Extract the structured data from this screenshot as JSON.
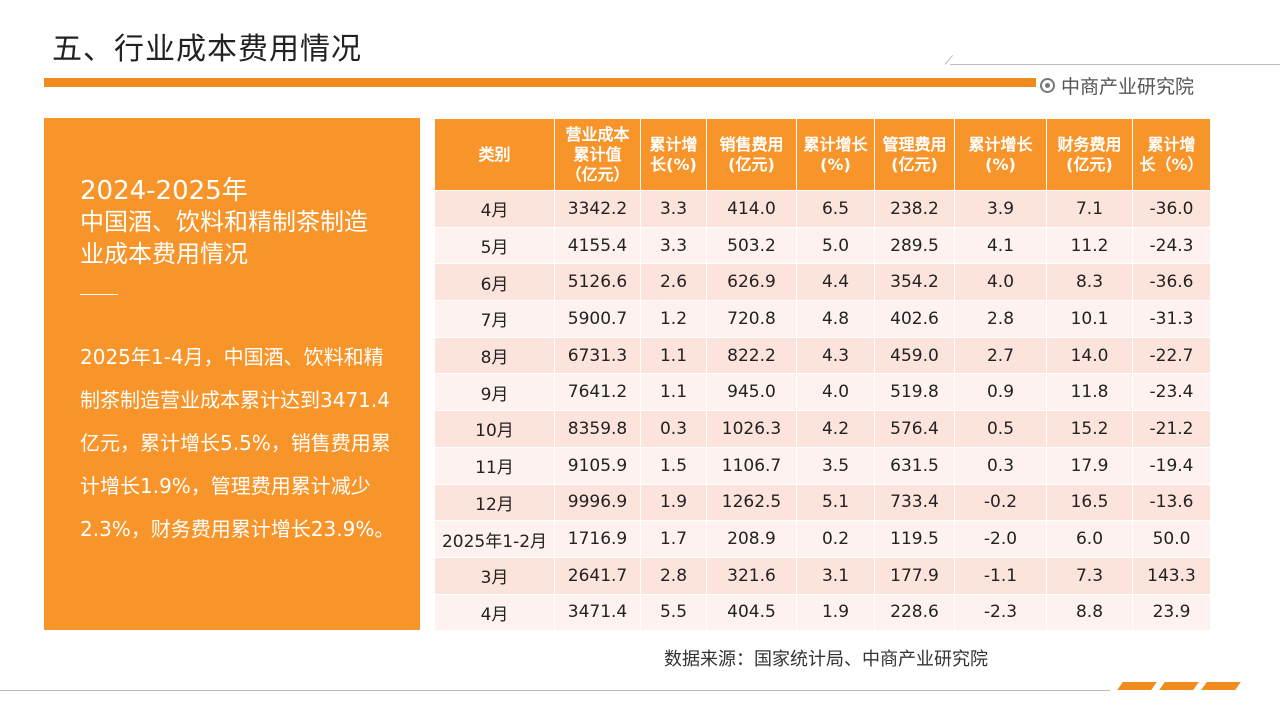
{
  "page": {
    "title": "五、行业成本费用情况",
    "brand": "中商产业研究院",
    "source": "数据来源：国家统计局、中商产业研究院"
  },
  "left_panel": {
    "year": "2024-2025年",
    "subtitle": "中国酒、饮料和精制茶制造业成本费用情况",
    "description": "2025年1-4月，中国酒、饮料和精制茶制造营业成本累计达到3471.4亿元，累计增长5.5%，销售费用累计增长1.9%，管理费用累计减少2.3%，财务费用累计增长23.9%。"
  },
  "colors": {
    "accent": "#f8952a",
    "row_odd": "#fce3dc",
    "row_even": "#fdf2ef"
  },
  "chart_data": {
    "type": "table",
    "columns": [
      "类别",
      "营业成本累计值（亿元）",
      "累计增长(%)",
      "销售费用(亿元)",
      "累计增长(%)",
      "管理费用(亿元)",
      "累计增长(%)",
      "财务费用(亿元)",
      "累计增长（%）"
    ],
    "header_lines": [
      [
        "类别"
      ],
      [
        "营业成本",
        "累计值",
        "（亿元）"
      ],
      [
        "累计增",
        "长(%)"
      ],
      [
        "销售费用",
        "(亿元)"
      ],
      [
        "累计增长",
        "(%)"
      ],
      [
        "管理费用",
        "(亿元)"
      ],
      [
        "累计增长",
        "(%)"
      ],
      [
        "财务费用",
        "(亿元)"
      ],
      [
        "累计增",
        "长（%）"
      ]
    ],
    "rows": [
      [
        "4月",
        "3342.2",
        "3.3",
        "414.0",
        "6.5",
        "238.2",
        "3.9",
        "7.1",
        "-36.0"
      ],
      [
        "5月",
        "4155.4",
        "3.3",
        "503.2",
        "5.0",
        "289.5",
        "4.1",
        "11.2",
        "-24.3"
      ],
      [
        "6月",
        "5126.6",
        "2.6",
        "626.9",
        "4.4",
        "354.2",
        "4.0",
        "8.3",
        "-36.6"
      ],
      [
        "7月",
        "5900.7",
        "1.2",
        "720.8",
        "4.8",
        "402.6",
        "2.8",
        "10.1",
        "-31.3"
      ],
      [
        "8月",
        "6731.3",
        "1.1",
        "822.2",
        "4.3",
        "459.0",
        "2.7",
        "14.0",
        "-22.7"
      ],
      [
        "9月",
        "7641.2",
        "1.1",
        "945.0",
        "4.0",
        "519.8",
        "0.9",
        "11.8",
        "-23.4"
      ],
      [
        "10月",
        "8359.8",
        "0.3",
        "1026.3",
        "4.2",
        "576.4",
        "0.5",
        "15.2",
        "-21.2"
      ],
      [
        "11月",
        "9105.9",
        "1.5",
        "1106.7",
        "3.5",
        "631.5",
        "0.3",
        "17.9",
        "-19.4"
      ],
      [
        "12月",
        "9996.9",
        "1.9",
        "1262.5",
        "5.1",
        "733.4",
        "-0.2",
        "16.5",
        "-13.6"
      ],
      [
        "2025年1-2月",
        "1716.9",
        "1.7",
        "208.9",
        "0.2",
        "119.5",
        "-2.0",
        "6.0",
        "50.0"
      ],
      [
        "3月",
        "2641.7",
        "2.8",
        "321.6",
        "3.1",
        "177.9",
        "-1.1",
        "7.3",
        "143.3"
      ],
      [
        "4月",
        "3471.4",
        "5.5",
        "404.5",
        "1.9",
        "228.6",
        "-2.3",
        "8.8",
        "23.9"
      ]
    ]
  }
}
